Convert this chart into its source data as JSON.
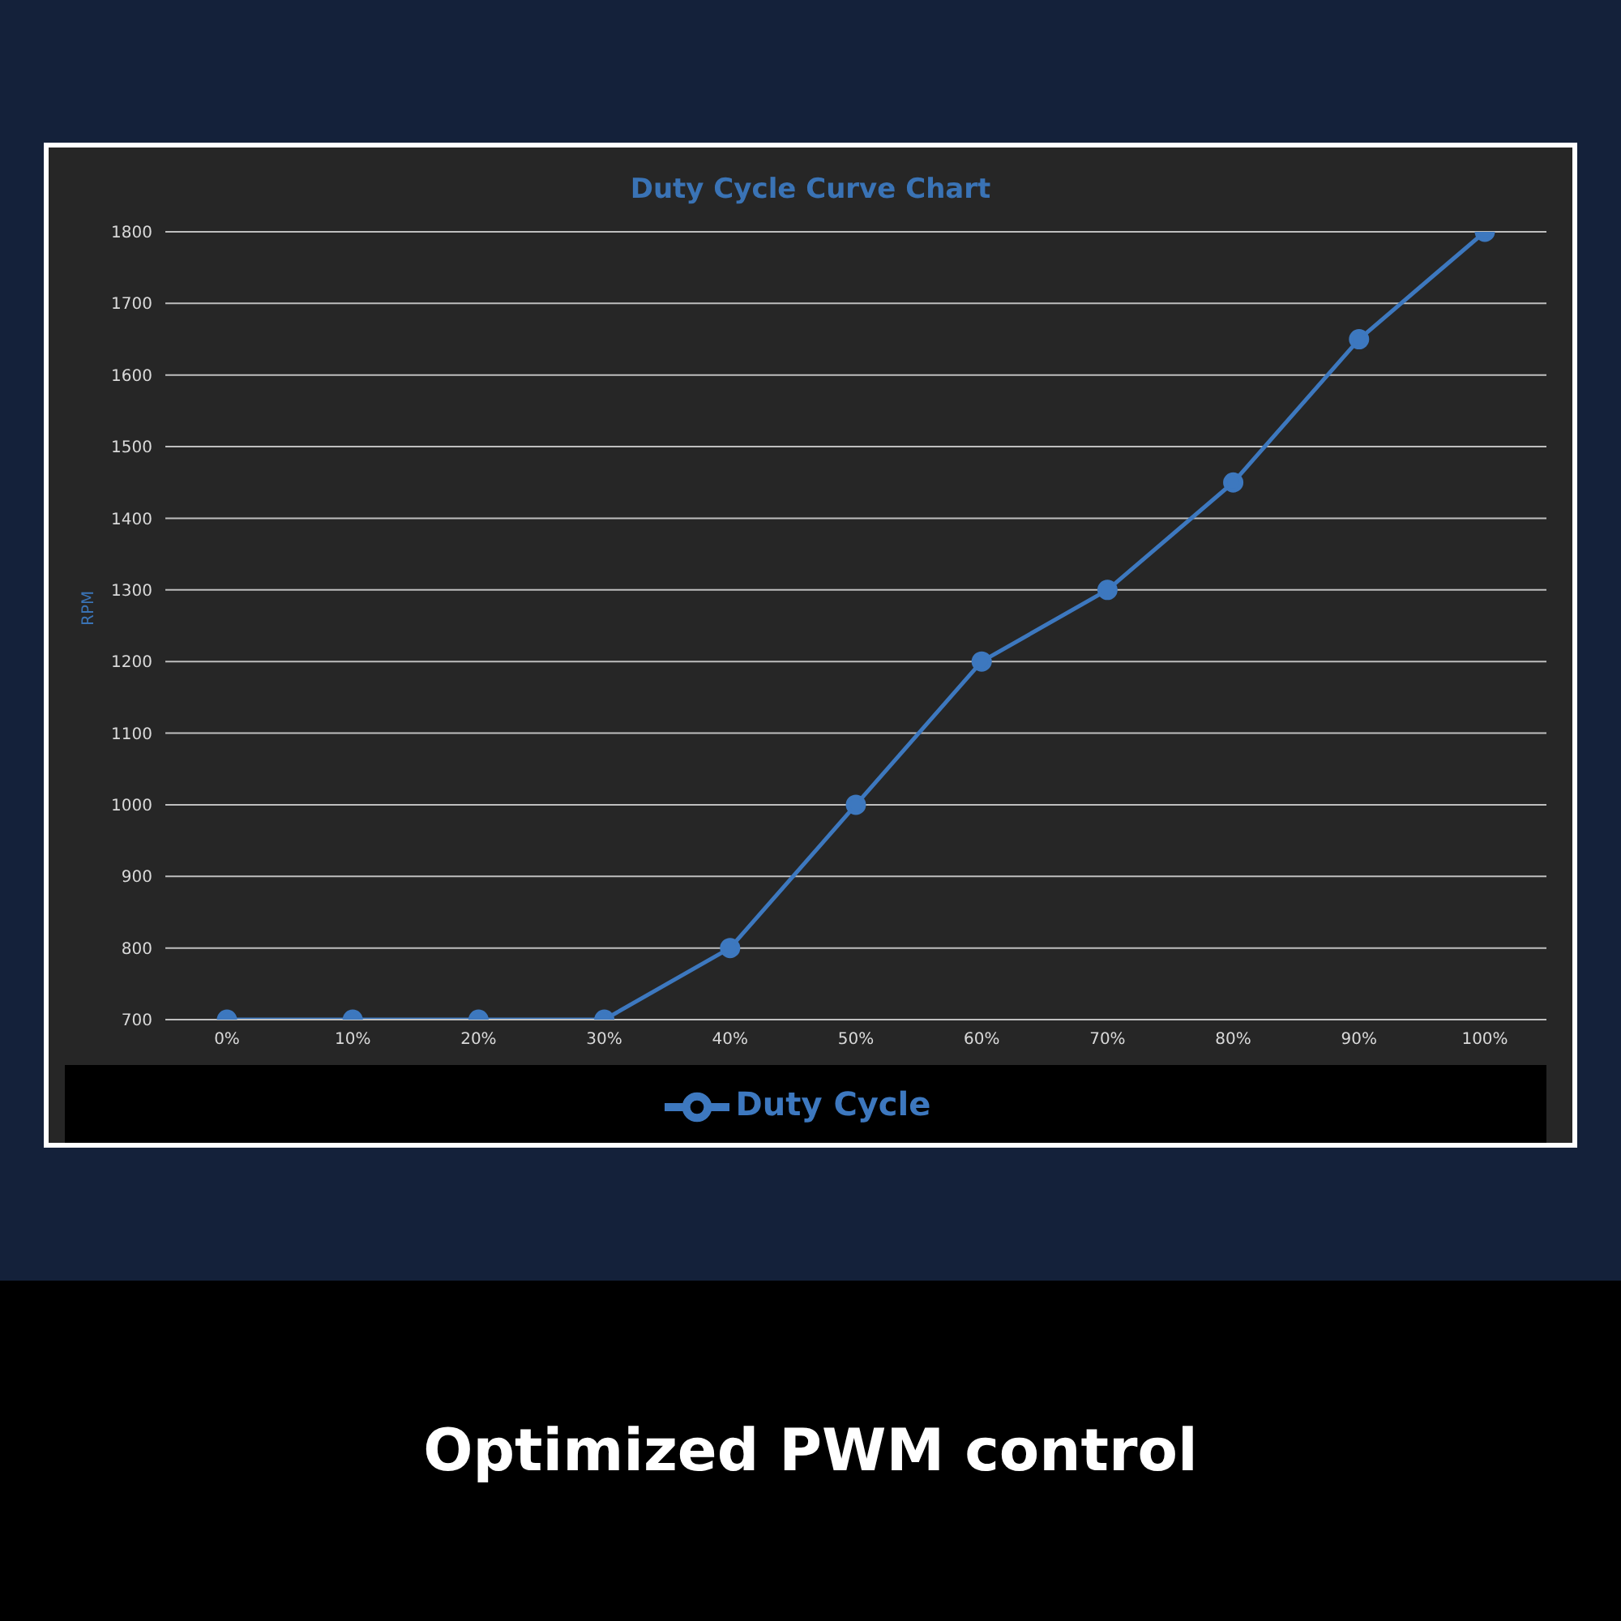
{
  "chart_data": {
    "type": "line",
    "title": "Duty Cycle Curve Chart",
    "ylabel": "RPM",
    "categories": [
      "0%",
      "10%",
      "20%",
      "30%",
      "40%",
      "50%",
      "60%",
      "70%",
      "80%",
      "90%",
      "100%"
    ],
    "series": [
      {
        "name": "Duty Cycle",
        "color": "#3d78bf",
        "values": [
          700,
          700,
          700,
          700,
          800,
          1000,
          1200,
          1300,
          1450,
          1650,
          1800
        ]
      }
    ],
    "ylim": [
      700,
      1800
    ],
    "yticks": [
      700,
      800,
      900,
      1000,
      1100,
      1200,
      1300,
      1400,
      1500,
      1600,
      1700,
      1800
    ],
    "grid": "y",
    "legend": "bottom",
    "marker": "circle",
    "line_style": "solid",
    "annotations": [
      "Optimized PWM control"
    ]
  }
}
